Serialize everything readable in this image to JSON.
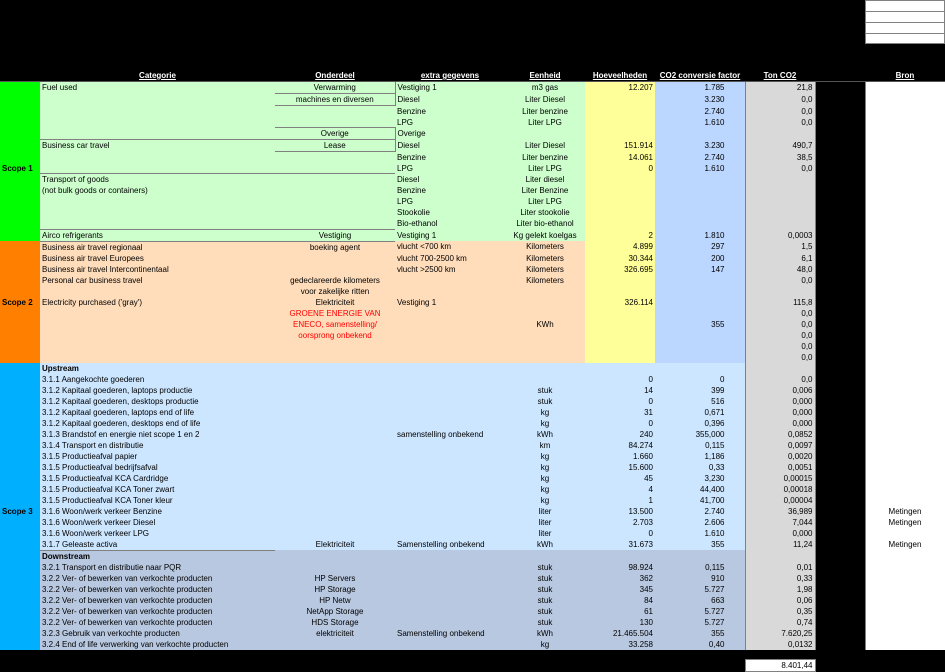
{
  "headers": {
    "categorie": "Categorie",
    "onderdeel": "Onderdeel",
    "extra": "extra gegevens",
    "eenheid": "Eenheid",
    "hoeveelheden": "Hoeveelheden",
    "conv": "CO2 conversie factor",
    "ton": "Ton CO2",
    "bron": "Bron"
  },
  "scopes": {
    "s1": "Scope 1",
    "s2": "Scope 2",
    "s3": "Scope 3"
  },
  "colors": {
    "scope1": "#00ff00",
    "scope2": "#ff8000",
    "scope3": "#00b0ff",
    "s1bg": "#ccffcc",
    "s2bg": "#ffddbb",
    "s3bg_up": "#cce6ff",
    "s3bg_dn": "#b8c8e0",
    "yellow": "#ffff99",
    "blue": "#bbd6ff",
    "grey": "#d9d9d9",
    "black": "#000000"
  },
  "total": "8.401,44",
  "rows": [
    {
      "sec": "s1",
      "cat": "Fuel used",
      "ond": "Verwarming",
      "ext": "Vestiging 1",
      "een": "m3 gas",
      "h": "12.207",
      "c": "1.785",
      "t": "21,8",
      "ond_b": "trb"
    },
    {
      "sec": "s1",
      "cat": "",
      "ond": "machines en diversen",
      "ext": "Diesel",
      "een": "Liter Diesel",
      "h": "",
      "c": "3.230",
      "t": "0,0",
      "ond_b": "rb"
    },
    {
      "sec": "s1",
      "cat": "",
      "ond": "",
      "ext": "Benzine",
      "een": "Liter benzine",
      "h": "",
      "c": "2.740",
      "t": "0,0"
    },
    {
      "sec": "s1",
      "cat": "",
      "ond": "",
      "ext": "LPG",
      "een": "Liter LPG",
      "h": "",
      "c": "1.610",
      "t": "0,0"
    },
    {
      "sec": "s1",
      "cat": "",
      "ond": "Overige",
      "ext": "Overige",
      "een": "",
      "h": "",
      "c": "",
      "t": "",
      "ond_b": "trb"
    },
    {
      "sec": "s1",
      "cat": "Business car travel",
      "ond": "Lease",
      "ext": "Diesel",
      "een": "Liter Diesel",
      "h": "151.914",
      "c": "3.230",
      "t": "490,7",
      "ond_b": "trb",
      "cat_b": "t"
    },
    {
      "sec": "s1",
      "cat": "",
      "ond": "",
      "ext": "Benzine",
      "een": "Liter benzine",
      "h": "14.061",
      "c": "2.740",
      "t": "38,5"
    },
    {
      "sec": "s1",
      "cat": "",
      "ond": "",
      "ext": "LPG",
      "een": "Liter LPG",
      "h": "0",
      "c": "1.610",
      "t": "0,0"
    },
    {
      "sec": "s1",
      "cat": "Transport of goods",
      "ond": "",
      "ext": "Diesel",
      "een": "Liter diesel",
      "h": "",
      "c": "",
      "t": "",
      "cat_b": "t",
      "ond_b": "t"
    },
    {
      "sec": "s1",
      "cat": "(not bulk goods or containers)",
      "ond": "",
      "ext": "Benzine",
      "een": "Liter Benzine",
      "h": "",
      "c": "",
      "t": ""
    },
    {
      "sec": "s1",
      "cat": "",
      "ond": "",
      "ext": "LPG",
      "een": "Liter LPG",
      "h": "",
      "c": "",
      "t": ""
    },
    {
      "sec": "s1",
      "cat": "",
      "ond": "",
      "ext": "Stookolie",
      "een": "Liter stookolie",
      "h": "",
      "c": "",
      "t": ""
    },
    {
      "sec": "s1",
      "cat": "",
      "ond": "",
      "ext": "Bio-ethanol",
      "een": "Liter bio-ethanol",
      "h": "",
      "c": "",
      "t": ""
    },
    {
      "sec": "s1",
      "cat": "Airco refrigerants",
      "ond": "Vestiging",
      "ext": "Vestiging 1",
      "een": "Kg gelekt koelgas",
      "h": "2",
      "c": "1.810",
      "t": "0,0003",
      "cat_b": "tb",
      "ond_b": "tb"
    },
    {
      "sec": "s2",
      "cat": "Business air travel regionaal",
      "ond": "boeking agent",
      "ext": "vlucht <700 km",
      "een": "Kilometers",
      "h": "4.899",
      "c": "297",
      "t": "1,5"
    },
    {
      "sec": "s2",
      "cat": "Business air travel Europees",
      "ond": "",
      "ext": "vlucht 700-2500 km",
      "een": "Kilometers",
      "h": "30.344",
      "c": "200",
      "t": "6,1"
    },
    {
      "sec": "s2",
      "cat": "Business air travel Intercontinentaal",
      "ond": "",
      "ext": "vlucht >2500 km",
      "een": "Kilometers",
      "h": "326.695",
      "c": "147",
      "t": "48,0"
    },
    {
      "sec": "s2",
      "cat": "Personal car business travel",
      "ond": "gedeclareerde kilometers",
      "ext": "",
      "een": "Kilometers",
      "h": "",
      "c": "",
      "t": "0,0"
    },
    {
      "sec": "s2",
      "cat": "",
      "ond": "voor zakelijke ritten",
      "ext": "",
      "een": "",
      "h": "",
      "c": "",
      "t": ""
    },
    {
      "sec": "s2",
      "cat": "Electricity purchased ('gray')",
      "ond": "Elektriciteit",
      "ext": "Vestiging 1",
      "een": "",
      "h": "326.114",
      "c": "",
      "t": "115,8"
    },
    {
      "sec": "s2",
      "cat": "",
      "ond": "GROENE ENERGIE VAN",
      "ext": "",
      "een": "",
      "h": "",
      "c": "",
      "t": "0,0",
      "red": true
    },
    {
      "sec": "s2",
      "cat": "",
      "ond": "ENECO, samenstelling/",
      "ext": "",
      "een": "KWh",
      "h": "",
      "c": "355",
      "t": "0,0",
      "red": true
    },
    {
      "sec": "s2",
      "cat": "",
      "ond": "oorsprong onbekend",
      "ext": "",
      "een": "",
      "h": "",
      "c": "",
      "t": "0,0",
      "red": true
    },
    {
      "sec": "s2",
      "cat": "",
      "ond": "",
      "ext": "",
      "een": "",
      "h": "",
      "c": "",
      "t": "0,0"
    },
    {
      "sec": "s2",
      "cat": "",
      "ond": "",
      "ext": "",
      "een": "",
      "h": "",
      "c": "",
      "t": "0,0"
    },
    {
      "sec": "s3u",
      "cat": "Upstream",
      "bold": true
    },
    {
      "sec": "s3u",
      "cat": "3.1.1 Aangekochte goederen",
      "ond": "",
      "ext": "",
      "een": "",
      "h": "0",
      "c": "0",
      "t": "0,0"
    },
    {
      "sec": "s3u",
      "cat": "3.1.2 Kapitaal goederen, laptops productie",
      "ond": "",
      "ext": "",
      "een": "stuk",
      "h": "14",
      "c": "399",
      "t": "0,006"
    },
    {
      "sec": "s3u",
      "cat": "3.1.2 Kapitaal goederen, desktops productie",
      "ond": "",
      "ext": "",
      "een": "stuk",
      "h": "0",
      "c": "516",
      "t": "0,000"
    },
    {
      "sec": "s3u",
      "cat": "3.1.2 Kapitaal goederen, laptops end of life",
      "ond": "",
      "ext": "",
      "een": "kg",
      "h": "31",
      "c": "0,671",
      "t": "0,000"
    },
    {
      "sec": "s3u",
      "cat": "3.1.2 Kapitaal goederen, desktops end of life",
      "ond": "",
      "ext": "",
      "een": "kg",
      "h": "0",
      "c": "0,396",
      "t": "0,000"
    },
    {
      "sec": "s3u",
      "cat": "3.1.3 Brandstof en energie niet scope 1 en 2",
      "ond": "",
      "ext": "samenstelling onbekend",
      "een": "kWh",
      "h": "240",
      "c": "355,000",
      "t": "0,0852"
    },
    {
      "sec": "s3u",
      "cat": "3.1.4 Transport en distributie",
      "ond": "",
      "ext": "",
      "een": "km",
      "h": "84.274",
      "c": "0,115",
      "t": "0,0097"
    },
    {
      "sec": "s3u",
      "cat": "3.1.5 Productieafval papier",
      "ond": "",
      "ext": "",
      "een": "kg",
      "h": "1.660",
      "c": "1,186",
      "t": "0,0020"
    },
    {
      "sec": "s3u",
      "cat": "3.1.5 Productieafval bedrijfsafval",
      "ond": "",
      "ext": "",
      "een": "kg",
      "h": "15.600",
      "c": "0,33",
      "t": "0,0051"
    },
    {
      "sec": "s3u",
      "cat": "3.1.5 Productieafval KCA Cardridge",
      "ond": "",
      "ext": "",
      "een": "kg",
      "h": "45",
      "c": "3,230",
      "t": "0,00015"
    },
    {
      "sec": "s3u",
      "cat": "3.1.5 Productieafval KCA Toner zwart",
      "ond": "",
      "ext": "",
      "een": "kg",
      "h": "4",
      "c": "44,400",
      "t": "0,00018"
    },
    {
      "sec": "s3u",
      "cat": "3.1.5 Productieafval KCA Toner kleur",
      "ond": "",
      "ext": "",
      "een": "kg",
      "h": "1",
      "c": "41,700",
      "t": "0,00004"
    },
    {
      "sec": "s3u",
      "cat": "3.1.6 Woon/werk verkeer Benzine",
      "ond": "",
      "ext": "",
      "een": "liter",
      "h": "13.500",
      "c": "2.740",
      "t": "36,989",
      "bron": "Metingen"
    },
    {
      "sec": "s3u",
      "cat": "3.1.6 Woon/werk verkeer Diesel",
      "ond": "",
      "ext": "",
      "een": "liter",
      "h": "2.703",
      "c": "2.606",
      "t": "7,044",
      "bron": "Metingen"
    },
    {
      "sec": "s3u",
      "cat": "3.1.6 Woon/werk verkeer LPG",
      "ond": "",
      "ext": "",
      "een": "liter",
      "h": "0",
      "c": "1.610",
      "t": "0,000"
    },
    {
      "sec": "s3u",
      "cat": "3.1.7 Geleaste activa",
      "ond": "Elektriciteit",
      "ext": "Samenstelling onbekend",
      "een": "kWh",
      "h": "31.673",
      "c": "355",
      "t": "11,24",
      "bron": "Metingen",
      "cat_b": "b"
    },
    {
      "sec": "s3d",
      "cat": "Downstream",
      "bold": true
    },
    {
      "sec": "s3d",
      "cat": "3.2.1 Transport en distributie naar PQR",
      "ond": "",
      "ext": "",
      "een": "stuk",
      "h": "98.924",
      "c": "0,115",
      "t": "0,01"
    },
    {
      "sec": "s3d",
      "cat": "3.2.2 Ver- of bewerken van verkochte producten",
      "ond": "HP Servers",
      "ext": "",
      "een": "stuk",
      "h": "362",
      "c": "910",
      "t": "0,33"
    },
    {
      "sec": "s3d",
      "cat": "3.2.2 Ver- of bewerken van verkochte producten",
      "ond": "HP Storage",
      "ext": "",
      "een": "stuk",
      "h": "345",
      "c": "5.727",
      "t": "1,98"
    },
    {
      "sec": "s3d",
      "cat": "3.2.2 Ver- of bewerken van verkochte producten",
      "ond": "HP Netw",
      "ext": "",
      "een": "stuk",
      "h": "84",
      "c": "663",
      "t": "0,06"
    },
    {
      "sec": "s3d",
      "cat": "3.2.2 Ver- of bewerken van verkochte producten",
      "ond": "NetApp Storage",
      "ext": "",
      "een": "stuk",
      "h": "61",
      "c": "5.727",
      "t": "0,35"
    },
    {
      "sec": "s3d",
      "cat": "3.2.2 Ver- of bewerken van verkochte producten",
      "ond": "HDS Storage",
      "ext": "",
      "een": "stuk",
      "h": "130",
      "c": "5.727",
      "t": "0,74"
    },
    {
      "sec": "s3d",
      "cat": "3.2.3 Gebruik van verkochte producten",
      "ond": "elektriciteit",
      "ext": "Samenstelling onbekend",
      "een": "kWh",
      "h": "21.465.504",
      "c": "355",
      "t": "7.620,25"
    },
    {
      "sec": "s3d",
      "cat": "3.2.4 End of life verwerking van verkochte producten",
      "ond": "",
      "ext": "",
      "een": "kg",
      "h": "33.258",
      "c": "0,40",
      "t": "0,0132"
    }
  ]
}
